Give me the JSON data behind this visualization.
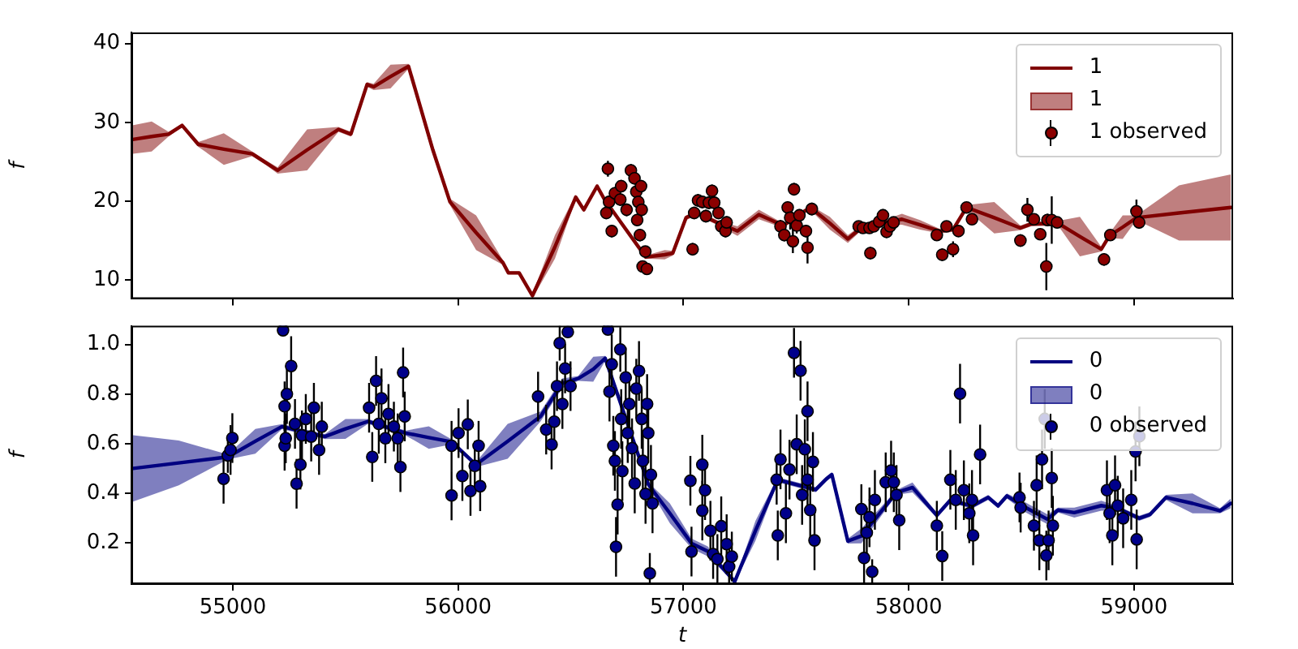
{
  "chart_data": [
    {
      "type": "line",
      "ylabel": "f",
      "xlim": [
        54550,
        59440
      ],
      "ylim": [
        7.6,
        41.4
      ],
      "xticks": [
        55000,
        56000,
        57000,
        58000,
        59000
      ],
      "yticks": [
        10,
        20,
        30,
        40
      ],
      "tick_labels": "y",
      "grid": false,
      "legend": "top right",
      "series": [
        {
          "name": "1",
          "color": "#800000",
          "x": [
            54550,
            54640,
            54715,
            54775,
            54847,
            54960,
            55086,
            55146,
            55199,
            55330,
            55469,
            55524,
            55596,
            55625,
            55700,
            55780,
            55888,
            55964,
            56080,
            56199,
            56223,
            56271,
            56330,
            56430,
            56522,
            56558,
            56617,
            56650,
            56833,
            56917,
            56953,
            57012,
            57060,
            57156,
            57240,
            57335,
            57443,
            57563,
            57650,
            57730,
            57802,
            57880,
            57970,
            58050,
            58137,
            58197,
            58257,
            58380,
            58496,
            58543,
            58663,
            58760,
            58855,
            58891,
            58950,
            59011,
            59200,
            59430
          ],
          "values": [
            27.8,
            28.2,
            28.5,
            29.6,
            27.2,
            26.6,
            26.0,
            24.9,
            23.9,
            26.5,
            29.1,
            28.5,
            34.8,
            34.5,
            35.8,
            37.1,
            26.5,
            19.9,
            16.0,
            12.2,
            10.9,
            10.9,
            8.0,
            14.2,
            20.5,
            18.9,
            21.9,
            20.2,
            12.9,
            13.2,
            13.4,
            17.9,
            18.5,
            17.2,
            16.2,
            18.3,
            16.9,
            19.2,
            17.2,
            15.2,
            16.9,
            17.2,
            17.7,
            17.0,
            16.2,
            16.4,
            19.2,
            17.9,
            16.6,
            17.1,
            17.2,
            15.5,
            13.9,
            15.6,
            16.7,
            17.9,
            18.5,
            19.2
          ],
          "lower": [
            26.0,
            26.3,
            28.2,
            29.4,
            26.9,
            24.6,
            25.7,
            24.6,
            23.5,
            23.9,
            28.8,
            28.2,
            34.5,
            34.1,
            34.3,
            36.8,
            26.3,
            19.5,
            13.8,
            11.9,
            10.7,
            10.7,
            7.65,
            12.7,
            20.2,
            18.6,
            21.6,
            20.0,
            12.7,
            12.6,
            13.1,
            17.6,
            18.2,
            16.9,
            15.6,
            17.7,
            16.6,
            18.9,
            16.4,
            14.7,
            16.6,
            16.9,
            17.0,
            16.4,
            15.9,
            16.1,
            18.9,
            15.9,
            16.3,
            16.8,
            16.9,
            13.0,
            13.6,
            15.3,
            15.2,
            17.6,
            15.0,
            15.0
          ],
          "upper": [
            29.6,
            30.1,
            28.8,
            29.8,
            27.5,
            28.6,
            26.3,
            25.2,
            24.3,
            29.1,
            29.4,
            28.8,
            35.1,
            34.9,
            37.3,
            37.4,
            26.7,
            20.3,
            18.2,
            12.5,
            11.1,
            11.1,
            8.25,
            15.7,
            20.8,
            19.2,
            22.2,
            20.4,
            13.1,
            13.8,
            13.7,
            18.2,
            18.8,
            17.5,
            16.8,
            18.9,
            17.2,
            19.5,
            18.0,
            15.7,
            17.2,
            17.5,
            18.4,
            17.6,
            16.5,
            16.7,
            19.5,
            19.9,
            16.9,
            17.4,
            17.5,
            18.0,
            14.2,
            15.9,
            18.2,
            18.2,
            22.0,
            23.4
          ]
        },
        {
          "name": "1 observed",
          "type": "scatter",
          "marker": "circle",
          "color": "#8b0000",
          "x": [
            56665,
            56658,
            56682,
            56670,
            56696,
            56720,
            56724,
            56748,
            56767,
            56783,
            56791,
            56795,
            56800,
            56807,
            56812,
            56815,
            56819,
            56831,
            56838,
            57041,
            57048,
            57065,
            57084,
            57100,
            57113,
            57127,
            57137,
            57156,
            57168,
            57187,
            57192,
            57431,
            57448,
            57463,
            57474,
            57486,
            57491,
            57503,
            57515,
            57544,
            57551,
            57570,
            57778,
            57797,
            57826,
            57830,
            57845,
            57869,
            57886,
            57902,
            57917,
            57933,
            58125,
            58149,
            58168,
            58197,
            58221,
            58257,
            58281,
            58496,
            58527,
            58556,
            58584,
            58611,
            58616,
            58635,
            58659,
            58867,
            58895,
            59011,
            59023
          ],
          "values": [
            24.1,
            18.5,
            16.2,
            19.9,
            21.0,
            20.2,
            21.9,
            18.9,
            23.9,
            22.9,
            21.2,
            17.6,
            19.9,
            15.7,
            21.9,
            18.9,
            11.7,
            13.6,
            11.4,
            13.9,
            18.5,
            20.1,
            19.9,
            18.1,
            19.8,
            21.3,
            19.8,
            18.5,
            16.8,
            16.2,
            17.3,
            16.8,
            15.7,
            19.2,
            17.9,
            14.9,
            21.5,
            16.9,
            18.2,
            16.2,
            14.1,
            19.0,
            16.8,
            16.6,
            16.6,
            13.4,
            16.8,
            17.4,
            18.2,
            16.1,
            16.8,
            17.3,
            15.7,
            13.2,
            16.8,
            13.9,
            16.2,
            19.2,
            17.7,
            15.0,
            18.9,
            17.7,
            15.8,
            11.7,
            17.6,
            17.6,
            17.3,
            12.6,
            15.7,
            18.7,
            17.3
          ],
          "errors": [
            1,
            0.8,
            0.8,
            0.8,
            0.8,
            0.8,
            0.8,
            0.8,
            0.8,
            0.8,
            0.8,
            0.8,
            0.8,
            0.8,
            0.8,
            0.8,
            0.6,
            0.6,
            0.6,
            0.8,
            0.8,
            0.8,
            0.8,
            0.8,
            0.8,
            0.8,
            0.8,
            0.8,
            0.8,
            0.8,
            0.8,
            0.8,
            0.8,
            0.8,
            1.5,
            1.5,
            0.8,
            1,
            0.8,
            0.8,
            2,
            0.8,
            0.6,
            0.6,
            0.6,
            0.8,
            0.6,
            0.6,
            0.8,
            0.8,
            0.6,
            0.6,
            0.6,
            0.8,
            0.6,
            1,
            0.6,
            0.6,
            0.6,
            0.8,
            1.5,
            0.6,
            0.6,
            3,
            0.8,
            3,
            0.6,
            0.8,
            0.6,
            1.5,
            0.8
          ]
        }
      ]
    },
    {
      "type": "line",
      "xlabel": "t",
      "ylabel": "f",
      "xlim": [
        54550,
        59440
      ],
      "ylim": [
        0.035,
        1.075
      ],
      "xticks": [
        55000,
        56000,
        57000,
        58000,
        59000
      ],
      "yticks": [
        0.2,
        0.4,
        0.6,
        0.8,
        {
          "value": 1,
          "label": "1.0"
        }
      ],
      "grid": false,
      "legend": "top right",
      "series": [
        {
          "name": "0",
          "color": "#000080",
          "x": [
            54550,
            54760,
            54978,
            55100,
            55218,
            55409,
            55500,
            55600,
            55768,
            55870,
            55971,
            56079,
            56220,
            56366,
            56462,
            56533,
            56600,
            56653,
            56845,
            56940,
            57037,
            57108,
            57228,
            57320,
            57419,
            57587,
            57635,
            57659,
            57730,
            57790,
            57946,
            58017,
            58125,
            58185,
            58281,
            58353,
            58397,
            58436,
            58520,
            58616,
            58663,
            58735,
            58855,
            58927,
            59023,
            59071,
            59142,
            59260,
            59382,
            59430
          ],
          "values": [
            0.5,
            0.523,
            0.547,
            0.61,
            0.669,
            0.629,
            0.66,
            0.69,
            0.643,
            0.625,
            0.608,
            0.516,
            0.61,
            0.71,
            0.843,
            0.863,
            0.9,
            0.944,
            0.435,
            0.32,
            0.198,
            0.167,
            0.045,
            0.25,
            0.455,
            0.415,
            0.459,
            0.476,
            0.208,
            0.229,
            0.404,
            0.424,
            0.312,
            0.373,
            0.349,
            0.384,
            0.35,
            0.39,
            0.343,
            0.296,
            0.333,
            0.323,
            0.351,
            0.34,
            0.3,
            0.315,
            0.384,
            0.36,
            0.33,
            0.36
          ],
          "lower": [
            0.365,
            0.433,
            0.537,
            0.56,
            0.659,
            0.619,
            0.62,
            0.68,
            0.633,
            0.58,
            0.598,
            0.506,
            0.54,
            0.69,
            0.823,
            0.853,
            0.85,
            0.934,
            0.425,
            0.28,
            0.178,
            0.147,
            0.04,
            0.21,
            0.445,
            0.405,
            0.449,
            0.466,
            0.198,
            0.199,
            0.394,
            0.404,
            0.302,
            0.363,
            0.339,
            0.374,
            0.34,
            0.38,
            0.323,
            0.276,
            0.323,
            0.303,
            0.331,
            0.33,
            0.29,
            0.305,
            0.374,
            0.32,
            0.32,
            0.34
          ],
          "upper": [
            0.635,
            0.613,
            0.557,
            0.66,
            0.679,
            0.639,
            0.7,
            0.7,
            0.653,
            0.67,
            0.618,
            0.526,
            0.68,
            0.73,
            0.863,
            0.873,
            0.95,
            0.954,
            0.445,
            0.36,
            0.218,
            0.187,
            0.05,
            0.29,
            0.465,
            0.425,
            0.469,
            0.486,
            0.218,
            0.259,
            0.414,
            0.444,
            0.322,
            0.383,
            0.359,
            0.394,
            0.36,
            0.4,
            0.363,
            0.316,
            0.343,
            0.343,
            0.371,
            0.35,
            0.31,
            0.325,
            0.394,
            0.4,
            0.34,
            0.38
          ]
        },
        {
          "name": "0 observed",
          "type": "scatter",
          "marker": "circle",
          "color": "#00008b",
          "x": [
            54959,
            54978,
            54990,
            54998,
            55223,
            55230,
            55230,
            55235,
            55240,
            55259,
            55276,
            55283,
            55300,
            55307,
            55324,
            55348,
            55360,
            55383,
            55395,
            55605,
            55619,
            55636,
            55648,
            55660,
            55677,
            55691,
            55715,
            55732,
            55744,
            55756,
            55763,
            55971,
            55971,
            56002,
            56019,
            56043,
            56055,
            56074,
            56091,
            56098,
            56355,
            56391,
            56415,
            56427,
            56439,
            56451,
            56463,
            56475,
            56487,
            56499,
            56665,
            56672,
            56682,
            56689,
            56696,
            56701,
            56708,
            56720,
            56724,
            56729,
            56744,
            56753,
            56760,
            56772,
            56784,
            56791,
            56803,
            56815,
            56820,
            56832,
            56839,
            56844,
            56851,
            56856,
            56863,
            57031,
            57036,
            57084,
            57084,
            57096,
            57120,
            57132,
            57151,
            57168,
            57192,
            57203,
            57215,
            57414,
            57419,
            57431,
            57455,
            57471,
            57491,
            57503,
            57520,
            57527,
            57539,
            57551,
            57551,
            57563,
            57575,
            57582,
            57790,
            57802,
            57814,
            57826,
            57838,
            57850,
            57898,
            57922,
            57934,
            57946,
            57958,
            58125,
            58149,
            58185,
            58209,
            58228,
            58245,
            58269,
            58281,
            58286,
            58317,
            58492,
            58497,
            58556,
            58568,
            58580,
            58592,
            58604,
            58611,
            58621,
            58635,
            58640,
            58880,
            58892,
            58904,
            58916,
            58928,
            58952,
            58988,
            59007,
            59012,
            59024
          ],
          "values": [
            0.459,
            0.553,
            0.575,
            0.623,
            1.057,
            0.751,
            0.592,
            0.622,
            0.8,
            0.913,
            0.68,
            0.439,
            0.516,
            0.634,
            0.7,
            0.629,
            0.745,
            0.575,
            0.669,
            0.745,
            0.547,
            0.853,
            0.68,
            0.783,
            0.622,
            0.72,
            0.669,
            0.622,
            0.506,
            0.887,
            0.71,
            0.592,
            0.392,
            0.643,
            0.47,
            0.678,
            0.41,
            0.511,
            0.592,
            0.429,
            0.79,
            0.657,
            0.597,
            0.689,
            0.832,
            1.005,
            0.76,
            0.903,
            1.05,
            0.832,
            1.06,
            0.81,
            0.92,
            0.592,
            0.531,
            0.185,
            0.355,
            0.98,
            0.7,
            0.49,
            0.867,
            0.643,
            0.76,
            0.582,
            0.44,
            0.822,
            0.893,
            0.7,
            0.531,
            0.398,
            0.76,
            0.643,
            0.078,
            0.475,
            0.36,
            0.451,
            0.166,
            0.516,
            0.331,
            0.413,
            0.25,
            0.156,
            0.136,
            0.268,
            0.196,
            0.105,
            0.146,
            0.455,
            0.231,
            0.537,
            0.32,
            0.496,
            0.966,
            0.598,
            0.894,
            0.394,
            0.578,
            0.731,
            0.455,
            0.333,
            0.527,
            0.211,
            0.337,
            0.14,
            0.242,
            0.304,
            0.085,
            0.374,
            0.445,
            0.492,
            0.445,
            0.394,
            0.292,
            0.27,
            0.148,
            0.455,
            0.374,
            0.802,
            0.413,
            0.32,
            0.374,
            0.231,
            0.557,
            0.384,
            0.343,
            0.27,
            0.433,
            0.211,
            0.537,
            0.7,
            0.15,
            0.211,
            0.462,
            0.27,
            0.413,
            0.32,
            0.231,
            0.433,
            0.351,
            0.3,
            0.374,
            0.569,
            0.215,
            0.63
          ],
          "errors": [
            0.1,
            0.07,
            0.1,
            0.1,
            0.015,
            0.1,
            0.1,
            0.1,
            0.12,
            0.12,
            0.1,
            0.1,
            0.1,
            0.1,
            0.1,
            0.1,
            0.1,
            0.1,
            0.1,
            0.1,
            0.1,
            0.1,
            0.12,
            0.12,
            0.1,
            0.12,
            0.1,
            0.1,
            0.1,
            0.1,
            0.1,
            0.1,
            0.1,
            0.1,
            0.1,
            0.1,
            0.1,
            0.1,
            0.1,
            0.1,
            0.1,
            0.1,
            0.1,
            0.1,
            0.1,
            0.07,
            0.1,
            0.1,
            0.02,
            0.1,
            0.015,
            0.12,
            0.12,
            0.12,
            0.12,
            0.12,
            0.12,
            0.09,
            0.12,
            0.12,
            0.12,
            0.12,
            0.12,
            0.12,
            0.12,
            0.12,
            0.12,
            0.12,
            0.12,
            0.12,
            0.12,
            0.12,
            [
              0.04,
              0.16
            ],
            0.12,
            0.12,
            0.1,
            0.1,
            0.12,
            0.12,
            0.12,
            0.12,
            0.1,
            0.1,
            0.12,
            0.12,
            0.07,
            0.1,
            0.1,
            0.1,
            0.12,
            0.12,
            0.12,
            0.1,
            0.12,
            0.12,
            0.12,
            0.12,
            0.12,
            0.12,
            0.12,
            0.12,
            0.12,
            0.1,
            0.1,
            0.1,
            0.12,
            0.05,
            0.12,
            0.12,
            0.12,
            0.12,
            0.12,
            0.12,
            0.1,
            0.1,
            0.12,
            0.12,
            0.12,
            0.12,
            0.12,
            0.12,
            0.12,
            0.12,
            0.1,
            0.1,
            0.1,
            0.12,
            0.12,
            0.12,
            0.12,
            0.1,
            0.12,
            0.12,
            0.12,
            0.12,
            0.12,
            0.12,
            0.12,
            0.12,
            0.12,
            0.12,
            0.12,
            0.12,
            0.12
          ]
        }
      ]
    }
  ]
}
